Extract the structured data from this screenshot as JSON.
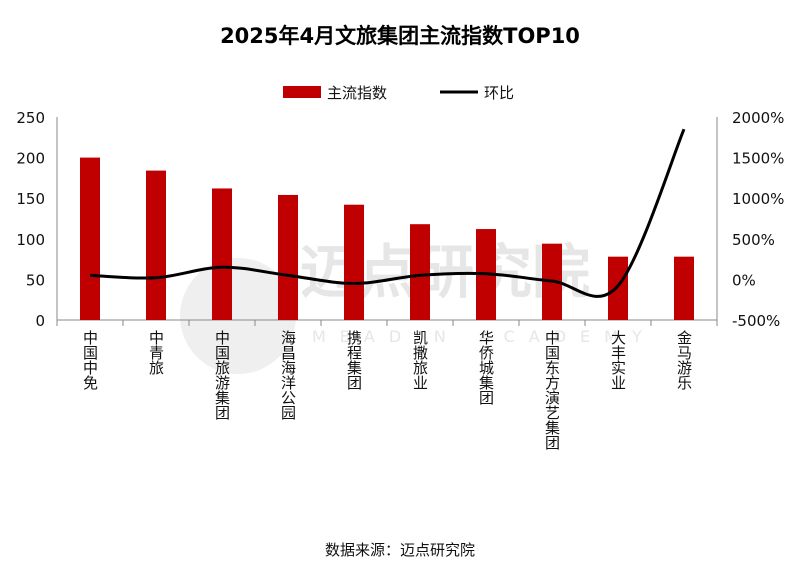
{
  "chart_data": {
    "type": "bar+line",
    "title": "2025年4月文旅集团主流指数TOP10",
    "categories": [
      "中国中免",
      "中青旅",
      "中国旅游集团",
      "海昌海洋公园",
      "携程集团",
      "凯撒旅业",
      "华侨城集团",
      "中国东方演艺集团",
      "大丰实业",
      "金马游乐"
    ],
    "series": [
      {
        "name": "主流指数",
        "kind": "bar",
        "axis": "left",
        "color": "#c00000",
        "values": [
          200,
          184,
          162,
          154,
          142,
          118,
          112,
          94,
          78,
          78
        ]
      },
      {
        "name": "环比",
        "kind": "line",
        "axis": "right",
        "color": "#000000",
        "values": [
          50,
          20,
          150,
          50,
          -50,
          50,
          70,
          -20,
          -80,
          1850
        ]
      }
    ],
    "y_left": {
      "min": 0,
      "max": 250,
      "ticks": [
        0,
        50,
        100,
        150,
        200,
        250
      ]
    },
    "y_right": {
      "min": -500,
      "max": 2000,
      "ticks": [
        -500,
        0,
        500,
        1000,
        1500,
        2000
      ],
      "suffix": "%"
    },
    "legend_position": "top-center",
    "source": "数据来源：迈点研究院",
    "watermark": {
      "text": "迈点研究院",
      "sub": "MEADIN ACADEMY"
    }
  }
}
